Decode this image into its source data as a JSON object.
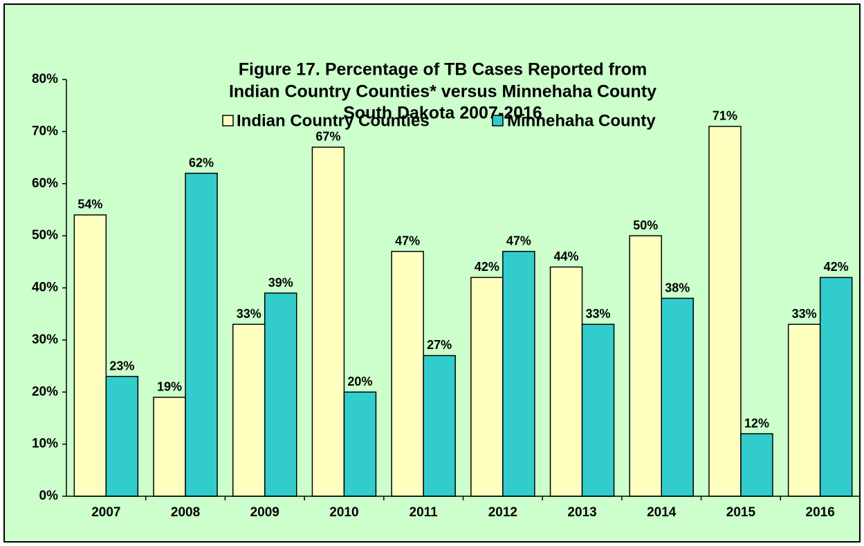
{
  "chart_data": {
    "type": "bar",
    "title": [
      "Figure 17.  Percentage of TB Cases Reported from",
      "Indian Country Counties* versus Minnehaha County",
      "South Dakota  2007-2016"
    ],
    "categories": [
      "2007",
      "2008",
      "2009",
      "2010",
      "2011",
      "2012",
      "2013",
      "2014",
      "2015",
      "2016"
    ],
    "series": [
      {
        "name": "Indian Country Counties",
        "color": "#ffffc0",
        "values": [
          54,
          19,
          33,
          67,
          47,
          42,
          44,
          50,
          71,
          33
        ],
        "value_labels": [
          "54%",
          "19%",
          "33%",
          "67%",
          "47%",
          "42%",
          "44%",
          "50%",
          "71%",
          "33%"
        ]
      },
      {
        "name": "Minnehaha County",
        "color": "#33cccc",
        "values": [
          23,
          62,
          39,
          20,
          27,
          47,
          33,
          38,
          12,
          42
        ],
        "value_labels": [
          "23%",
          "62%",
          "39%",
          "20%",
          "27%",
          "47%",
          "33%",
          "38%",
          "12%",
          "42%"
        ]
      }
    ],
    "ylim": [
      0,
      80
    ],
    "yticks": [
      {
        "value": 0,
        "label": "0%"
      },
      {
        "value": 10,
        "label": "10%"
      },
      {
        "value": 20,
        "label": "20%"
      },
      {
        "value": 30,
        "label": "30%"
      },
      {
        "value": 40,
        "label": "40%"
      },
      {
        "value": 50,
        "label": "50%"
      },
      {
        "value": 60,
        "label": "60%"
      },
      {
        "value": 70,
        "label": "70%"
      },
      {
        "value": 80,
        "label": "80%"
      }
    ],
    "grid": false
  }
}
